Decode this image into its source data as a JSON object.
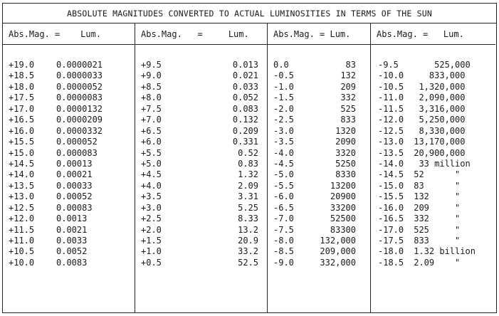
{
  "title": "ABSOLUTE MAGNITUDES CONVERTED TO ACTUAL LUMINOSITIES IN TERMS OF THE SUN",
  "columns": [
    {
      "header": "Abs.Mag. =    Lum.",
      "rows": [
        {
          "mag": "+19.0",
          "lum": "0.0000021"
        },
        {
          "mag": "+18.5",
          "lum": "0.0000033"
        },
        {
          "mag": "+18.0",
          "lum": "0.0000052"
        },
        {
          "mag": "+17.5",
          "lum": "0.0000083"
        },
        {
          "mag": "+17.0",
          "lum": "0.0000132"
        },
        {
          "mag": "+16.5",
          "lum": "0.0000209"
        },
        {
          "mag": "+16.0",
          "lum": "0.0000332"
        },
        {
          "mag": "+15.5",
          "lum": "0.000052"
        },
        {
          "mag": "+15.0",
          "lum": "0.000083"
        },
        {
          "mag": "+14.5",
          "lum": "0.00013"
        },
        {
          "mag": "+14.0",
          "lum": "0.00021"
        },
        {
          "mag": "+13.5",
          "lum": "0.00033"
        },
        {
          "mag": "+13.0",
          "lum": "0.00052"
        },
        {
          "mag": "+12.5",
          "lum": "0.00083"
        },
        {
          "mag": "+12.0",
          "lum": "0.0013"
        },
        {
          "mag": "+11.5",
          "lum": "0.0021"
        },
        {
          "mag": "+11.0",
          "lum": "0.0033"
        },
        {
          "mag": "+10.5",
          "lum": "0.0052"
        },
        {
          "mag": "+10.0",
          "lum": "0.0083"
        }
      ]
    },
    {
      "header": "Abs.Mag.   =     Lum.",
      "rows": [
        {
          "mag": "+9.5",
          "lum": "0.013"
        },
        {
          "mag": "+9.0",
          "lum": "0.021"
        },
        {
          "mag": "+8.5",
          "lum": "0.033"
        },
        {
          "mag": "+8.0",
          "lum": "0.052"
        },
        {
          "mag": "+7.5",
          "lum": "0.083"
        },
        {
          "mag": "+7.0",
          "lum": "0.132"
        },
        {
          "mag": "+6.5",
          "lum": "0.209"
        },
        {
          "mag": "+6.0",
          "lum": "0.331"
        },
        {
          "mag": "+5.5",
          "lum": "0.52"
        },
        {
          "mag": "+5.0",
          "lum": "0.83"
        },
        {
          "mag": "+4.5",
          "lum": "1.32"
        },
        {
          "mag": "+4.0",
          "lum": "2.09"
        },
        {
          "mag": "+3.5",
          "lum": "3.31"
        },
        {
          "mag": "+3.0",
          "lum": "5.25"
        },
        {
          "mag": "+2.5",
          "lum": "8.33"
        },
        {
          "mag": "+2.0",
          "lum": "13.2"
        },
        {
          "mag": "+1.5",
          "lum": "20.9"
        },
        {
          "mag": "+1.0",
          "lum": "33.2"
        },
        {
          "mag": "+0.5",
          "lum": "52.5"
        }
      ]
    },
    {
      "header": "Abs.Mag. = Lum.",
      "rows": [
        {
          "mag": "0.0",
          "lum": "83"
        },
        {
          "mag": "-0.5",
          "lum": "132"
        },
        {
          "mag": "-1.0",
          "lum": "209"
        },
        {
          "mag": "-1.5",
          "lum": "332"
        },
        {
          "mag": "-2.0",
          "lum": "525"
        },
        {
          "mag": "-2.5",
          "lum": "833"
        },
        {
          "mag": "-3.0",
          "lum": "1320"
        },
        {
          "mag": "-3.5",
          "lum": "2090"
        },
        {
          "mag": "-4.0",
          "lum": "3320"
        },
        {
          "mag": "-4.5",
          "lum": "5250"
        },
        {
          "mag": "-5.0",
          "lum": "8330"
        },
        {
          "mag": "-5.5",
          "lum": "13200"
        },
        {
          "mag": "-6.0",
          "lum": "20900"
        },
        {
          "mag": "-6.5",
          "lum": "33200"
        },
        {
          "mag": "-7.0",
          "lum": "52500"
        },
        {
          "mag": "-7.5",
          "lum": "83300"
        },
        {
          "mag": "-8.0",
          "lum": "132,000"
        },
        {
          "mag": "-8.5",
          "lum": "209,000"
        },
        {
          "mag": "-9.0",
          "lum": "332,000"
        }
      ]
    },
    {
      "header": "Abs.Mag. =   Lum.",
      "rows": [
        {
          "mag": "-9.5",
          "lum": "     525,000"
        },
        {
          "mag": "-10.0",
          "lum": "    833,000"
        },
        {
          "mag": "-10.5",
          "lum": "  1,320,000"
        },
        {
          "mag": "-11.0",
          "lum": "  2,090,000"
        },
        {
          "mag": "-11.5",
          "lum": "  3,316,000"
        },
        {
          "mag": "-12.0",
          "lum": "  5,250,000"
        },
        {
          "mag": "-12.5",
          "lum": "  8,330,000"
        },
        {
          "mag": "-13.0",
          "lum": " 13,170,000"
        },
        {
          "mag": "-13.5",
          "lum": " 20,900,000"
        },
        {
          "mag": "-14.0",
          "lum": "  33 million"
        },
        {
          "mag": "-14.5",
          "lum": " 52      \""
        },
        {
          "mag": "-15.0",
          "lum": " 83      \""
        },
        {
          "mag": "-15.5",
          "lum": " 132     \""
        },
        {
          "mag": "-16.0",
          "lum": " 209     \""
        },
        {
          "mag": "-16.5",
          "lum": " 332     \""
        },
        {
          "mag": "-17.0",
          "lum": " 525     \""
        },
        {
          "mag": "-17.5",
          "lum": " 833     \""
        },
        {
          "mag": "-18.0",
          "lum": " 1.32 billion"
        },
        {
          "mag": "-18.5",
          "lum": " 2.09    \""
        }
      ]
    }
  ]
}
